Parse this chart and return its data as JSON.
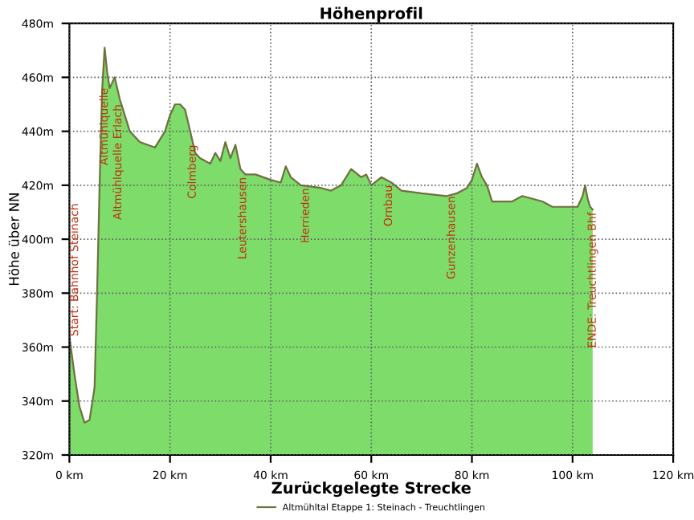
{
  "chart_data": {
    "type": "area",
    "title": "Höhenprofil",
    "xlabel": "Zurückgelegte Strecke",
    "ylabel": "Höhe über NN",
    "x": [
      0,
      1,
      2,
      3,
      4,
      5,
      5.5,
      6,
      6.5,
      7,
      7.5,
      8,
      8.5,
      9,
      9.5,
      10,
      11,
      12,
      14,
      17,
      19,
      20,
      21,
      22,
      23,
      24,
      25,
      26,
      28,
      29,
      30,
      31,
      32,
      33,
      34,
      35,
      37,
      40,
      42,
      43,
      44,
      46,
      50,
      52,
      54,
      56,
      58,
      59,
      60,
      62,
      64,
      66,
      70,
      75,
      77,
      79,
      80,
      81,
      82,
      83,
      84,
      88,
      90,
      94,
      96,
      101,
      102,
      102.5,
      103,
      103.5,
      104
    ],
    "series": [
      {
        "name": "Altmühltal Etappe 1: Steinach - Treuchtlingen",
        "color": "#7ddc6a",
        "values": [
          364,
          350,
          338,
          332,
          333,
          345,
          380,
          420,
          455,
          471,
          462,
          456,
          458,
          460,
          456,
          452,
          446,
          440,
          436,
          434,
          440,
          446,
          450,
          450,
          448,
          440,
          432,
          430,
          428,
          432,
          429,
          436,
          430,
          435,
          426,
          424,
          424,
          422,
          421,
          427,
          423,
          420,
          419,
          418,
          420,
          426,
          423,
          424,
          420,
          423,
          421,
          418,
          417,
          416,
          417,
          419,
          422,
          428,
          423,
          420,
          414,
          414,
          416,
          414,
          412,
          412,
          416,
          420,
          415,
          412,
          411
        ]
      }
    ],
    "xlim": [
      0,
      120
    ],
    "ylim": [
      320,
      480
    ],
    "xticks": [
      {
        "value": 0,
        "label": "0 km"
      },
      {
        "value": 20,
        "label": "20 km"
      },
      {
        "value": 40,
        "label": "40 km"
      },
      {
        "value": 60,
        "label": "60 km"
      },
      {
        "value": 80,
        "label": "80 km"
      },
      {
        "value": 100,
        "label": "100 km"
      },
      {
        "value": 120,
        "label": "120 km"
      }
    ],
    "yticks": [
      {
        "value": 320,
        "label": "320m"
      },
      {
        "value": 340,
        "label": "340m"
      },
      {
        "value": 360,
        "label": "360m"
      },
      {
        "value": 380,
        "label": "380m"
      },
      {
        "value": 400,
        "label": "400m"
      },
      {
        "value": 420,
        "label": "420m"
      },
      {
        "value": 440,
        "label": "440m"
      },
      {
        "value": 460,
        "label": "460m"
      },
      {
        "value": 480,
        "label": "480m"
      }
    ],
    "grid": true,
    "legend": "bottom",
    "annotations": [
      {
        "text": "Start: Bahnhof Steinach",
        "x": 0,
        "y": 364
      },
      {
        "text": "Altmühlquelle",
        "x": 7,
        "y": 456
      },
      {
        "text": "Altmühlquelle Erlach",
        "x": 9.7,
        "y": 450
      },
      {
        "text": "Colmberg",
        "x": 24.5,
        "y": 435
      },
      {
        "text": "Leutershausen",
        "x": 34.5,
        "y": 423
      },
      {
        "text": "Herrieden",
        "x": 47,
        "y": 419
      },
      {
        "text": "Ornbau",
        "x": 63.5,
        "y": 420
      },
      {
        "text": "Gunzenhausen",
        "x": 76,
        "y": 416
      },
      {
        "text": "ENDE: Treuchtlingen Bhf",
        "x": 104,
        "y": 410
      }
    ]
  }
}
